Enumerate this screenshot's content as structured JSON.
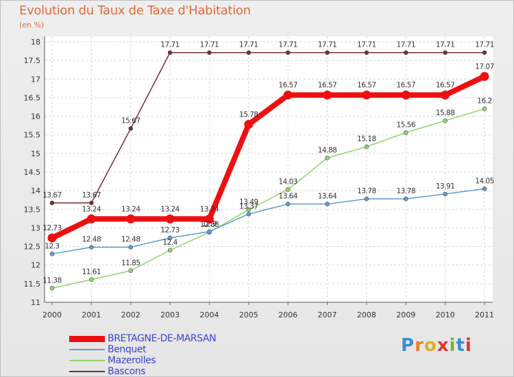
{
  "header": {
    "title": "Evolution du Taux de Taxe d'Habitation",
    "subtitle": "(en %)"
  },
  "brand": {
    "text": "Proxiti",
    "letter_colors": [
      "#3a8fd0",
      "#e8812b",
      "#d9b12a",
      "#e0342e",
      "#7ab33a",
      "#3a8fd0",
      "#e0342e"
    ]
  },
  "chart_data": {
    "type": "line",
    "x": [
      "2000",
      "2001",
      "2002",
      "2003",
      "2004",
      "2005",
      "2006",
      "2007",
      "2008",
      "2009",
      "2010",
      "2011"
    ],
    "ylim": [
      11,
      18
    ],
    "yticks": [
      "11",
      "11.5",
      "12",
      "12.5",
      "13",
      "13.5",
      "14",
      "14.5",
      "15",
      "15.5",
      "16",
      "16.5",
      "17",
      "17.5",
      "18"
    ],
    "grid": "horizontal dashed",
    "legend_position": "bottom-left",
    "series": [
      {
        "name": "BRETAGNE-DE-MARSAN",
        "color": "#ee1010",
        "values": [
          12.73,
          13.24,
          13.24,
          13.24,
          13.24,
          15.78,
          16.57,
          16.57,
          16.57,
          16.57,
          16.57,
          17.07
        ],
        "labels": [
          "12.73",
          "13.24",
          "13.24",
          "13.24",
          "13.24",
          "15.78",
          "16.57",
          "16.57",
          "16.57",
          "16.57",
          "16.57",
          "17.07"
        ]
      },
      {
        "name": "Benquet",
        "color": "#5b9bd5",
        "values": [
          12.3,
          12.48,
          12.48,
          12.73,
          12.9,
          13.37,
          13.64,
          13.64,
          13.78,
          13.78,
          13.91,
          14.05
        ],
        "labels": [
          "12.3",
          "12.48",
          "12.48",
          "12.73",
          "12.9",
          "13.37",
          "13.64",
          "13.64",
          "13.78",
          "13.78",
          "13.91",
          "14.05"
        ]
      },
      {
        "name": "Mazerolles",
        "color": "#8fd46a",
        "values": [
          11.38,
          11.61,
          11.85,
          12.4,
          12.88,
          13.49,
          14.03,
          14.88,
          15.18,
          15.56,
          15.88,
          16.2
        ],
        "labels": [
          "11.38",
          "11.61",
          "11.85",
          "12.4",
          "12.88",
          "13.49",
          "14.03",
          "14.88",
          "15.18",
          "15.56",
          "15.88",
          "16.2"
        ]
      },
      {
        "name": "Bascons",
        "color": "#7a2e2e",
        "values": [
          13.67,
          13.67,
          15.67,
          17.71,
          17.71,
          17.71,
          17.71,
          17.71,
          17.71,
          17.71,
          17.71,
          17.71
        ],
        "labels": [
          "13.67",
          "13.67",
          "15.67",
          "17.71",
          "17.71",
          "17.71",
          "17.71",
          "17.71",
          "17.71",
          "17.71",
          "17.71",
          "17.71"
        ]
      }
    ]
  }
}
